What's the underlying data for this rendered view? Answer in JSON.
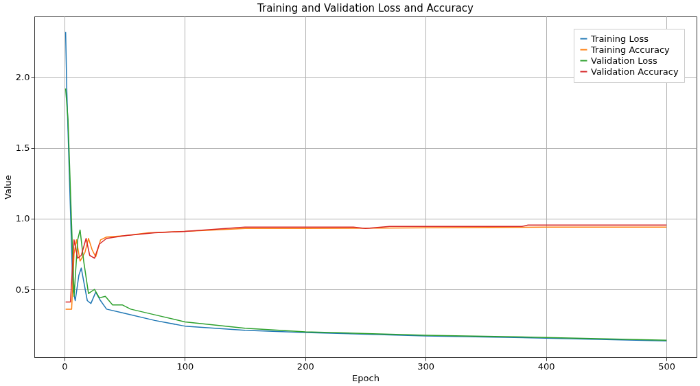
{
  "chart_data": {
    "type": "line",
    "title": "Training and Validation Loss and Accuracy",
    "xlabel": "Epoch",
    "ylabel": "Value",
    "xlim": [
      -25,
      525
    ],
    "ylim": [
      0.02,
      2.43
    ],
    "xticks": [
      0,
      100,
      200,
      300,
      400,
      500
    ],
    "yticks": [
      0.5,
      {
        "value": 1,
        "label": "1.0"
      },
      1.5,
      {
        "value": 2,
        "label": "2.0"
      }
    ],
    "grid": true,
    "legend": "top right",
    "marker": "none",
    "line_style": "solid",
    "series": [
      {
        "name": "Training Loss",
        "color": "#1f77b4",
        "x": [
          1,
          2,
          7,
          9,
          12,
          14,
          19,
          22,
          26,
          30,
          35,
          50,
          75,
          100,
          150,
          200,
          300,
          400,
          500
        ],
        "values": [
          2.32,
          1.9,
          0.5,
          0.42,
          0.6,
          0.65,
          0.42,
          0.4,
          0.48,
          0.42,
          0.36,
          0.33,
          0.28,
          0.24,
          0.21,
          0.195,
          0.17,
          0.155,
          0.135
        ]
      },
      {
        "name": "Training Accuracy",
        "color": "#ff7f0e",
        "x": [
          1,
          6,
          8,
          10,
          13,
          17,
          20,
          23,
          26,
          30,
          35,
          50,
          70,
          100,
          150,
          200,
          300,
          400,
          500
        ],
        "values": [
          0.36,
          0.36,
          0.75,
          0.85,
          0.7,
          0.76,
          0.86,
          0.78,
          0.73,
          0.85,
          0.87,
          0.88,
          0.9,
          0.91,
          0.93,
          0.93,
          0.935,
          0.94,
          0.94
        ]
      },
      {
        "name": "Validation Loss",
        "color": "#2ca02c",
        "x": [
          1,
          3,
          8,
          11,
          13,
          16,
          20,
          25,
          29,
          34,
          40,
          48,
          55,
          75,
          100,
          150,
          200,
          300,
          400,
          500
        ],
        "values": [
          1.92,
          1.7,
          0.45,
          0.85,
          0.92,
          0.7,
          0.47,
          0.5,
          0.44,
          0.45,
          0.39,
          0.39,
          0.36,
          0.32,
          0.27,
          0.225,
          0.2,
          0.175,
          0.16,
          0.14
        ]
      },
      {
        "name": "Validation Accuracy",
        "color": "#d62728",
        "x": [
          1,
          5,
          8,
          11,
          14,
          18,
          21,
          25,
          29,
          35,
          50,
          75,
          100,
          150,
          240,
          250,
          270,
          380,
          385,
          500
        ],
        "values": [
          0.41,
          0.41,
          0.85,
          0.72,
          0.74,
          0.86,
          0.74,
          0.72,
          0.82,
          0.86,
          0.88,
          0.9,
          0.91,
          0.94,
          0.94,
          0.93,
          0.945,
          0.945,
          0.955,
          0.955
        ]
      }
    ]
  }
}
